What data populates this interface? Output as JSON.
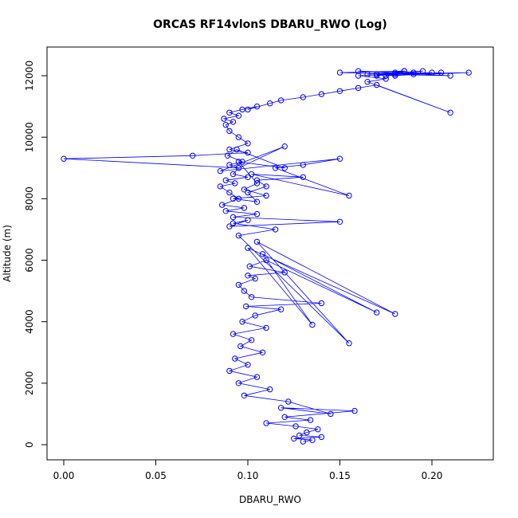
{
  "chart_data": {
    "type": "line",
    "title": "ORCAS RF14vlonS DBARU_RWO (Log)",
    "xlabel": "DBARU_RWO",
    "ylabel": "Altitude (m)",
    "xlim": [
      0.0,
      0.225
    ],
    "ylim": [
      0,
      12500
    ],
    "xticks": [
      "0.00",
      "0.05",
      "0.10",
      "0.15",
      "0.20"
    ],
    "yticks": [
      "0",
      "2000",
      "4000",
      "6000",
      "8000",
      "10000",
      "12000"
    ],
    "xtick_values": [
      0.0,
      0.05,
      0.1,
      0.15,
      0.2
    ],
    "ytick_values": [
      0,
      2000,
      4000,
      6000,
      8000,
      10000,
      12000
    ],
    "grid": false,
    "series": [
      {
        "marker": "open-circle",
        "line": true,
        "x": [
          0.13,
          0.135,
          0.125,
          0.14,
          0.128,
          0.132,
          0.138,
          0.126,
          0.11,
          0.134,
          0.12,
          0.158,
          0.118,
          0.145,
          0.122,
          0.098,
          0.112,
          0.095,
          0.105,
          0.09,
          0.1,
          0.093,
          0.108,
          0.096,
          0.102,
          0.092,
          0.11,
          0.097,
          0.104,
          0.118,
          0.099,
          0.14,
          0.102,
          0.098,
          0.095,
          0.104,
          0.1,
          0.12,
          0.101,
          0.11,
          0.17,
          0.108,
          0.135,
          0.1,
          0.18,
          0.105,
          0.155,
          0.095,
          0.115,
          0.092,
          0.1,
          0.09,
          0.15,
          0.092,
          0.105,
          0.088,
          0.098,
          0.086,
          0.095,
          0.09,
          0.085,
          0.093,
          0.088,
          0.1,
          0.092,
          0.095,
          0.09,
          0.097,
          0.089,
          0.094,
          0.12,
          0.095,
          0.105,
          0.098,
          0.11,
          0.092,
          0.105,
          0.1,
          0.11,
          0.105,
          0.13,
          0.102,
          0.155,
          0.115,
          0.13,
          0.15,
          0.085,
          0.12,
          0.095,
          0.0,
          0.07,
          0.1,
          0.09,
          0.1,
          0.095,
          0.09,
          0.088,
          0.092,
          0.087,
          0.095,
          0.09,
          0.097,
          0.105,
          0.1,
          0.112,
          0.118,
          0.13,
          0.14,
          0.15,
          0.16,
          0.17,
          0.21,
          0.165,
          0.175,
          0.16,
          0.18,
          0.15,
          0.185,
          0.17,
          0.19,
          0.165,
          0.195,
          0.175,
          0.2,
          0.17,
          0.21,
          0.16,
          0.18,
          0.17,
          0.22,
          0.175,
          0.185,
          0.19,
          0.205,
          0.18
        ],
        "y": [
          100,
          150,
          200,
          250,
          300,
          400,
          500,
          600,
          700,
          800,
          900,
          1100,
          1200,
          1000,
          1400,
          1600,
          1800,
          2000,
          2200,
          2400,
          2600,
          2800,
          3000,
          3200,
          3400,
          3600,
          3800,
          4000,
          4200,
          4400,
          4500,
          4600,
          4800,
          5000,
          5200,
          5400,
          5500,
          5600,
          5800,
          6000,
          4300,
          6200,
          3900,
          6400,
          4250,
          6600,
          3300,
          6800,
          7000,
          7200,
          7300,
          7100,
          7250,
          7400,
          7500,
          7600,
          7700,
          7800,
          8000,
          8200,
          8400,
          8500,
          8600,
          8700,
          8800,
          9000,
          9100,
          9200,
          9400,
          9600,
          9000,
          9200,
          8500,
          8300,
          8100,
          8000,
          7900,
          8200,
          8400,
          8600,
          8700,
          8800,
          8100,
          9000,
          9100,
          9300,
          8900,
          9700,
          9000,
          9300,
          9400,
          9500,
          9600,
          9800,
          10000,
          10200,
          10400,
          10500,
          10600,
          10700,
          10800,
          10900,
          11000,
          10900,
          11100,
          11200,
          11300,
          11400,
          11500,
          11600,
          11700,
          10800,
          11800,
          11900,
          12000,
          12050,
          12100,
          12150,
          12000,
          12100,
          12050,
          12150,
          12000,
          12100,
          12050,
          12000,
          12150,
          12100,
          12050,
          12100,
          12000,
          12150,
          12050,
          12100,
          12000
        ]
      }
    ]
  }
}
